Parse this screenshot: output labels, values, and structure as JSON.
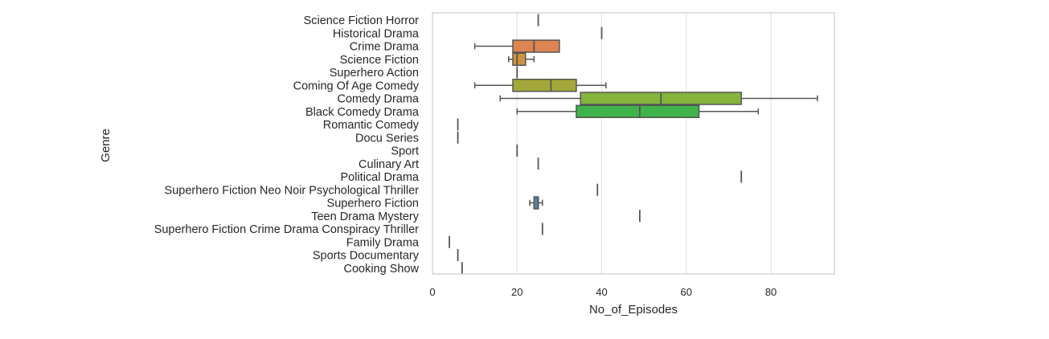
{
  "chart_data": {
    "type": "boxplot",
    "orientation": "horizontal",
    "xlabel": "No_of_Episodes",
    "ylabel": "Genre",
    "xlim": [
      0,
      95
    ],
    "xticks": [
      0,
      20,
      40,
      60,
      80
    ],
    "grid": "vertical",
    "categories": [
      "Science Fiction Horror",
      "Historical Drama",
      "Crime Drama",
      "Science Fiction",
      "Superhero Action",
      "Coming Of Age Comedy",
      "Comedy Drama",
      "Black Comedy Drama",
      "Romantic Comedy",
      "Docu Series",
      "Sport",
      "Culinary Art",
      "Political Drama",
      "Superhero Fiction Neo Noir Psychological Thriller",
      "Superhero Fiction",
      "Teen Drama Mystery",
      "Superhero Fiction Crime Drama Conspiracy Thriller",
      "Family Drama",
      "Sports Documentary",
      "Cooking Show"
    ],
    "boxes": [
      {
        "min": 25,
        "q1": 25,
        "median": 25,
        "q3": 25,
        "max": 25,
        "color": "#4c72b0"
      },
      {
        "min": 40,
        "q1": 40,
        "median": 40,
        "q3": 40,
        "max": 40,
        "color": "#c44e52"
      },
      {
        "min": 10,
        "q1": 19,
        "median": 24,
        "q3": 30,
        "max": 30,
        "color": "#dd8452"
      },
      {
        "min": 18,
        "q1": 19,
        "median": 20,
        "q3": 22,
        "max": 24,
        "color": "#d2933e"
      },
      {
        "min": 20,
        "q1": 20,
        "median": 20,
        "q3": 20,
        "max": 20,
        "color": "#bf9b3a"
      },
      {
        "min": 10,
        "q1": 19,
        "median": 28,
        "q3": 34,
        "max": 41,
        "color": "#a3a838"
      },
      {
        "min": 16,
        "q1": 35,
        "median": 54,
        "q3": 73,
        "max": 91,
        "color": "#85b43c"
      },
      {
        "min": 20,
        "q1": 34,
        "median": 49,
        "q3": 63,
        "max": 77,
        "color": "#3fb34a"
      },
      {
        "min": 6,
        "q1": 6,
        "median": 6,
        "q3": 6,
        "max": 6,
        "color": "#3aa66f"
      },
      {
        "min": 6,
        "q1": 6,
        "median": 6,
        "q3": 6,
        "max": 6,
        "color": "#38a88c"
      },
      {
        "min": 20,
        "q1": 20,
        "median": 20,
        "q3": 20,
        "max": 20,
        "color": "#37a99e"
      },
      {
        "min": 25,
        "q1": 25,
        "median": 25,
        "q3": 25,
        "max": 25,
        "color": "#3aa6b0"
      },
      {
        "min": 73,
        "q1": 73,
        "median": 73,
        "q3": 73,
        "max": 73,
        "color": "#3da2c2"
      },
      {
        "min": 39,
        "q1": 39,
        "median": 39,
        "q3": 39,
        "max": 39,
        "color": "#4a9bd5"
      },
      {
        "min": 23,
        "q1": 24,
        "median": 25,
        "q3": 25,
        "max": 26,
        "color": "#5b80a8"
      },
      {
        "min": 49,
        "q1": 49,
        "median": 49,
        "q3": 49,
        "max": 49,
        "color": "#8a84c8"
      },
      {
        "min": 26,
        "q1": 26,
        "median": 26,
        "q3": 26,
        "max": 26,
        "color": "#a87dd0"
      },
      {
        "min": 4,
        "q1": 4,
        "median": 4,
        "q3": 4,
        "max": 4,
        "color": "#c47ac4"
      },
      {
        "min": 6,
        "q1": 6,
        "median": 6,
        "q3": 6,
        "max": 6,
        "color": "#d47aae"
      },
      {
        "min": 7,
        "q1": 7,
        "median": 7,
        "q3": 7,
        "max": 7,
        "color": "#e07a9a"
      }
    ]
  }
}
